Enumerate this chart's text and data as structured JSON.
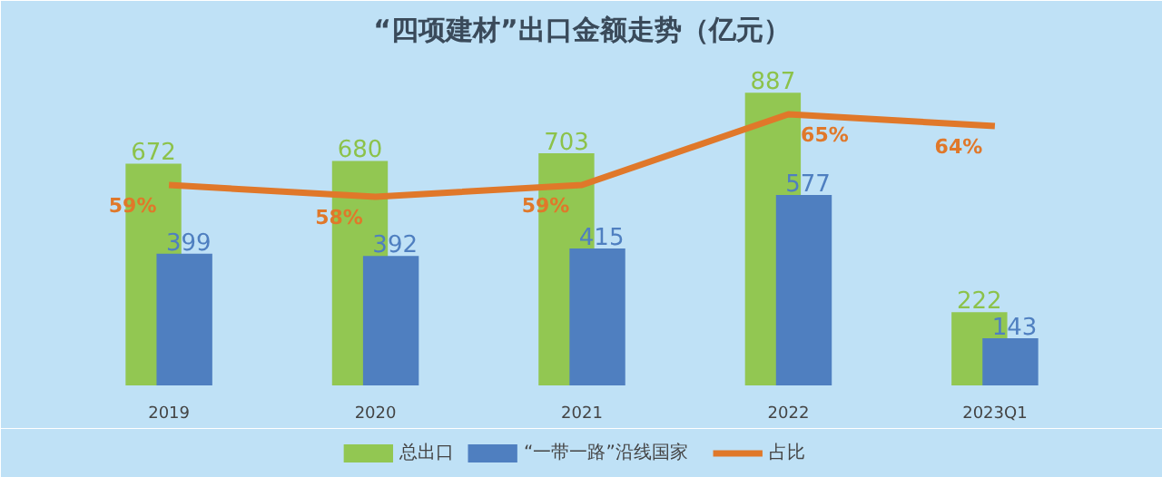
{
  "chart_data": {
    "type": "bar",
    "title": "“四项建材”出口金额走势（亿元）",
    "categories": [
      "2019",
      "2020",
      "2021",
      "2022",
      "2023Q1"
    ],
    "series": [
      {
        "name": "总出口",
        "color": "#92c752",
        "values": [
          672,
          680,
          703,
          887,
          222
        ]
      },
      {
        "name": "“一带一路”沿线国家",
        "color": "#4f7fc0",
        "values": [
          399,
          392,
          415,
          577,
          143
        ]
      },
      {
        "name": "占比",
        "type": "line",
        "axis": "y2",
        "color": "#e0782a",
        "values": [
          59,
          58,
          59,
          65,
          64
        ],
        "value_labels": [
          "59%",
          "58%",
          "59%",
          "65%",
          "64%"
        ]
      }
    ],
    "ylim": [
      0,
      1000
    ],
    "y2lim": [
      42,
      70
    ],
    "data_labels": true,
    "legend": "bottom",
    "grid": false,
    "tick_labels": "x",
    "line_style": "solid",
    "marker": "none"
  }
}
